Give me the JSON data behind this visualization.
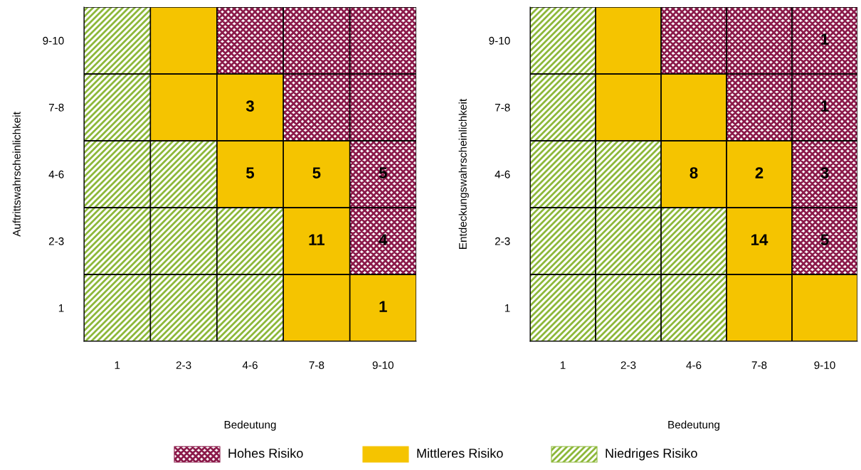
{
  "chart_data": [
    {
      "type": "heatmap",
      "xlabel": "Bedeutung",
      "ylabel": "Auftrittswahrscheinlichkeit",
      "categories": [
        "1",
        "2-3",
        "4-6",
        "7-8",
        "9-10"
      ],
      "y_categories": [
        "9-10",
        "7-8",
        "4-6",
        "2-3",
        "1"
      ],
      "cells": [
        [
          null,
          null,
          null,
          null,
          null
        ],
        [
          null,
          null,
          3,
          null,
          null
        ],
        [
          null,
          null,
          5,
          5,
          5
        ],
        [
          null,
          null,
          null,
          11,
          4
        ],
        [
          null,
          null,
          null,
          null,
          1
        ]
      ],
      "data_labels": true,
      "annotations": [
        "Hohes Risiko",
        "Mittleres Risiko",
        "Niedriges Risiko"
      ]
    },
    {
      "type": "heatmap",
      "xlabel": "Bedeutung",
      "ylabel": "Entdeckungswahrscheinlichkeit",
      "categories": [
        "1",
        "2-3",
        "4-6",
        "7-8",
        "9-10"
      ],
      "y_categories": [
        "9-10",
        "7-8",
        "4-6",
        "2-3",
        "1"
      ],
      "cells": [
        [
          null,
          null,
          null,
          null,
          1
        ],
        [
          null,
          null,
          null,
          null,
          1
        ],
        [
          null,
          null,
          8,
          2,
          3
        ],
        [
          null,
          null,
          null,
          14,
          5
        ],
        [
          null,
          null,
          null,
          null,
          null
        ]
      ],
      "data_labels": true
    }
  ]
}
